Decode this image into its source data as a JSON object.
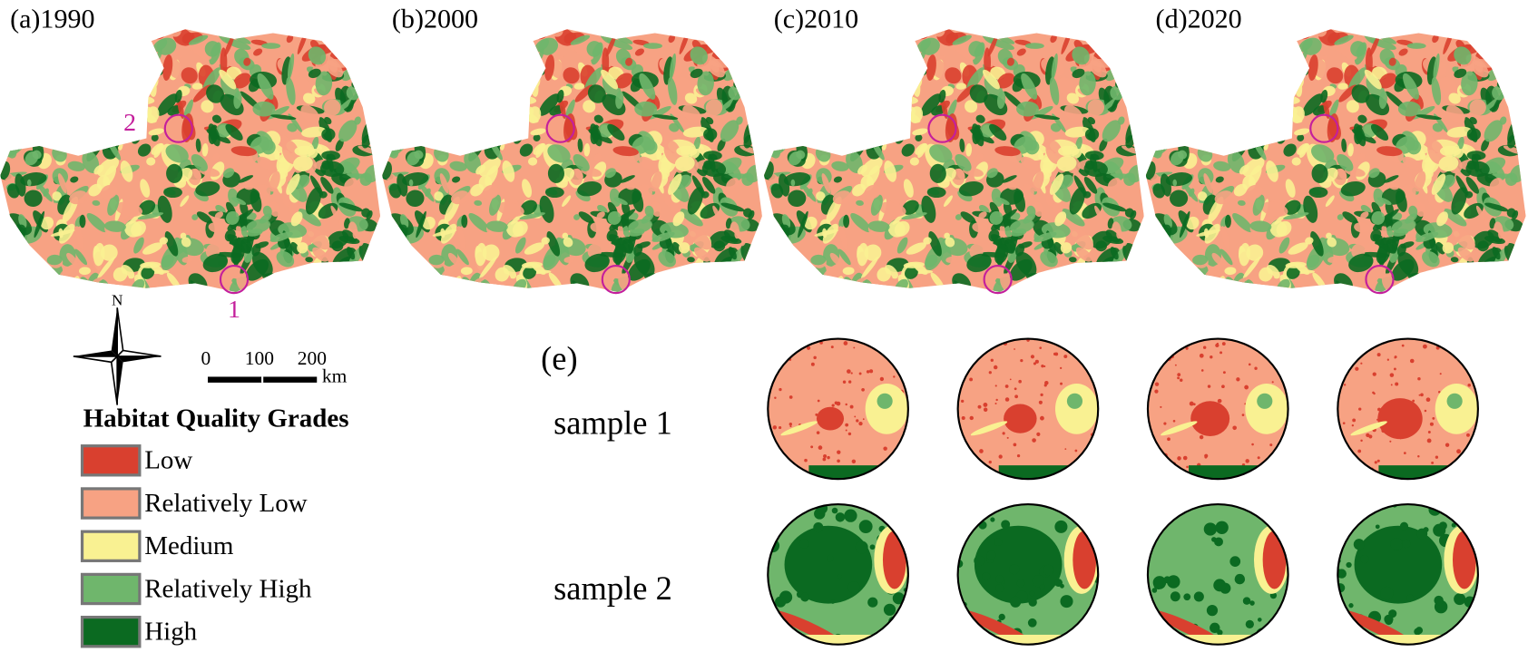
{
  "panels": [
    {
      "label": "(a)1990"
    },
    {
      "label": "(b)2000"
    },
    {
      "label": "(c)2010"
    },
    {
      "label": "(d)2020"
    }
  ],
  "markers": [
    {
      "label": "2"
    },
    {
      "label": "1"
    }
  ],
  "north": "N",
  "scale_bar": {
    "labels": [
      "0",
      "100",
      "200"
    ],
    "unit": "km"
  },
  "legend": {
    "title": "Habitat Quality Grades",
    "items": [
      {
        "label": "Low",
        "color": "#d9402f"
      },
      {
        "label": "Relatively Low",
        "color": "#f7a283"
      },
      {
        "label": "Medium",
        "color": "#f9f192"
      },
      {
        "label": "Relatively High",
        "color": "#6fb66c"
      },
      {
        "label": "High",
        "color": "#0b6a21"
      }
    ]
  },
  "inset": {
    "label": "(e)",
    "rows": [
      "sample 1",
      "sample 2"
    ]
  }
}
